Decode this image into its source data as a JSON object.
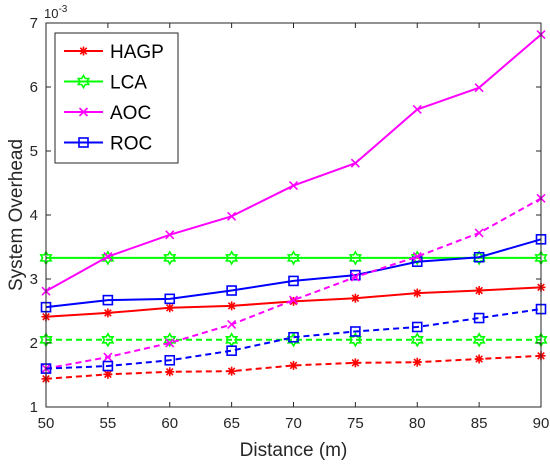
{
  "chart_data": {
    "type": "line",
    "title": "",
    "xlabel": "Distance (m)",
    "ylabel": "System Overhead",
    "y_exponent_label": "10",
    "y_exponent_power": "-3",
    "xlim": [
      50,
      90
    ],
    "ylim": [
      1,
      7
    ],
    "x": [
      50,
      55,
      60,
      65,
      70,
      75,
      80,
      85,
      90
    ],
    "x_tick_labels": [
      "50",
      "55",
      "60",
      "65",
      "70",
      "75",
      "80",
      "85",
      "90"
    ],
    "y_ticks": [
      1,
      2,
      3,
      4,
      5,
      6,
      7
    ],
    "y_tick_labels": [
      "1",
      "2",
      "3",
      "4",
      "5",
      "6",
      "7"
    ],
    "grid": false,
    "legend_placement": "top-left",
    "legend": [
      {
        "name": "HAGP",
        "color": "#ff0000",
        "marker": "asterisk"
      },
      {
        "name": "LCA",
        "color": "#00ff00",
        "marker": "hexagram"
      },
      {
        "name": "AOC",
        "color": "#ff00ff",
        "marker": "x"
      },
      {
        "name": "ROC",
        "color": "#0000ff",
        "marker": "square"
      }
    ],
    "series": [
      {
        "name": "HAGP",
        "color": "#ff0000",
        "marker": "asterisk",
        "dashed": false,
        "values": [
          2.41,
          2.47,
          2.55,
          2.58,
          2.65,
          2.7,
          2.78,
          2.82,
          2.87
        ]
      },
      {
        "name": "LCA",
        "color": "#00ff00",
        "marker": "hexagram",
        "dashed": false,
        "values": [
          3.33,
          3.33,
          3.33,
          3.33,
          3.33,
          3.33,
          3.33,
          3.33,
          3.33
        ]
      },
      {
        "name": "AOC",
        "color": "#ff00ff",
        "marker": "x",
        "dashed": false,
        "values": [
          2.81,
          3.35,
          3.69,
          3.98,
          4.46,
          4.81,
          5.65,
          5.99,
          6.82
        ]
      },
      {
        "name": "ROC",
        "color": "#0000ff",
        "marker": "square",
        "dashed": false,
        "values": [
          2.56,
          2.67,
          2.69,
          2.82,
          2.97,
          3.06,
          3.27,
          3.34,
          3.62
        ]
      },
      {
        "color": "#ff0000",
        "marker": "asterisk",
        "dashed": true,
        "values": [
          1.44,
          1.51,
          1.55,
          1.56,
          1.65,
          1.69,
          1.7,
          1.75,
          1.8
        ]
      },
      {
        "color": "#00ff00",
        "marker": "hexagram",
        "dashed": true,
        "values": [
          2.05,
          2.05,
          2.05,
          2.05,
          2.05,
          2.05,
          2.05,
          2.05,
          2.05
        ]
      },
      {
        "color": "#ff00ff",
        "marker": "x",
        "dashed": true,
        "values": [
          1.6,
          1.78,
          2.0,
          2.29,
          2.67,
          3.03,
          3.35,
          3.72,
          4.26
        ]
      },
      {
        "color": "#0000ff",
        "marker": "square",
        "dashed": true,
        "values": [
          1.6,
          1.64,
          1.73,
          1.88,
          2.09,
          2.18,
          2.25,
          2.39,
          2.53
        ]
      }
    ]
  }
}
